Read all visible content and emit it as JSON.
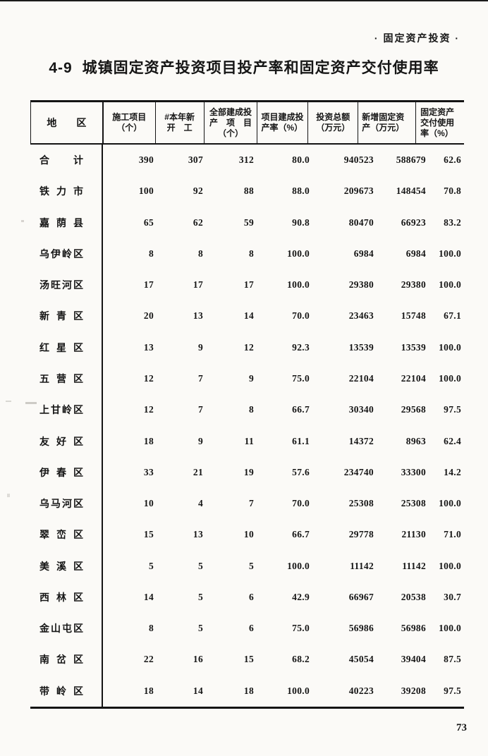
{
  "page": {
    "header_right": "·  固定资产投资  ·",
    "title_number": "4-9",
    "title_text": "城镇固定资产投资项目投产率和固定资产交付使用率",
    "page_number": "73"
  },
  "table": {
    "columns": [
      {
        "lines": [
          "地　　区"
        ]
      },
      {
        "lines": [
          "施工项目",
          "（个）"
        ]
      },
      {
        "lines": [
          "#本年新",
          "开　工"
        ]
      },
      {
        "lines": [
          "全部建成投",
          "产　项　目",
          "（个）"
        ]
      },
      {
        "lines": [
          "项目建成投",
          "产率（%）"
        ]
      },
      {
        "lines": [
          "投资总额",
          "（万元）"
        ]
      },
      {
        "lines": [
          "新增固定资",
          "产（万元）"
        ]
      },
      {
        "lines": [
          "固定资产",
          "交付使用",
          "率（%）"
        ]
      }
    ],
    "rows": [
      {
        "region": "合计",
        "values": [
          "390",
          "307",
          "312",
          "80.0",
          "940523",
          "588679",
          "62.6"
        ]
      },
      {
        "region": "铁力市",
        "values": [
          "100",
          "92",
          "88",
          "88.0",
          "209673",
          "148454",
          "70.8"
        ]
      },
      {
        "region": "嘉荫县",
        "values": [
          "65",
          "62",
          "59",
          "90.8",
          "80470",
          "66923",
          "83.2"
        ]
      },
      {
        "region": "乌伊岭区",
        "values": [
          "8",
          "8",
          "8",
          "100.0",
          "6984",
          "6984",
          "100.0"
        ]
      },
      {
        "region": "汤旺河区",
        "values": [
          "17",
          "17",
          "17",
          "100.0",
          "29380",
          "29380",
          "100.0"
        ]
      },
      {
        "region": "新青区",
        "values": [
          "20",
          "13",
          "14",
          "70.0",
          "23463",
          "15748",
          "67.1"
        ]
      },
      {
        "region": "红星区",
        "values": [
          "13",
          "9",
          "12",
          "92.3",
          "13539",
          "13539",
          "100.0"
        ]
      },
      {
        "region": "五营区",
        "values": [
          "12",
          "7",
          "9",
          "75.0",
          "22104",
          "22104",
          "100.0"
        ]
      },
      {
        "region": "上甘岭区",
        "values": [
          "12",
          "7",
          "8",
          "66.7",
          "30340",
          "29568",
          "97.5"
        ]
      },
      {
        "region": "友好区",
        "values": [
          "18",
          "9",
          "11",
          "61.1",
          "14372",
          "8963",
          "62.4"
        ]
      },
      {
        "region": "伊春区",
        "values": [
          "33",
          "21",
          "19",
          "57.6",
          "234740",
          "33300",
          "14.2"
        ]
      },
      {
        "region": "乌马河区",
        "values": [
          "10",
          "4",
          "7",
          "70.0",
          "25308",
          "25308",
          "100.0"
        ]
      },
      {
        "region": "翠峦区",
        "values": [
          "15",
          "13",
          "10",
          "66.7",
          "29778",
          "21130",
          "71.0"
        ]
      },
      {
        "region": "美溪区",
        "values": [
          "5",
          "5",
          "5",
          "100.0",
          "11142",
          "11142",
          "100.0"
        ]
      },
      {
        "region": "西林区",
        "values": [
          "14",
          "5",
          "6",
          "42.9",
          "66967",
          "20538",
          "30.7"
        ]
      },
      {
        "region": "金山屯区",
        "values": [
          "8",
          "5",
          "6",
          "75.0",
          "56986",
          "56986",
          "100.0"
        ]
      },
      {
        "region": "南岔区",
        "values": [
          "22",
          "16",
          "15",
          "68.2",
          "45054",
          "39404",
          "87.5"
        ]
      },
      {
        "region": "带岭区",
        "values": [
          "18",
          "14",
          "18",
          "100.0",
          "40223",
          "39208",
          "97.5"
        ]
      }
    ]
  }
}
